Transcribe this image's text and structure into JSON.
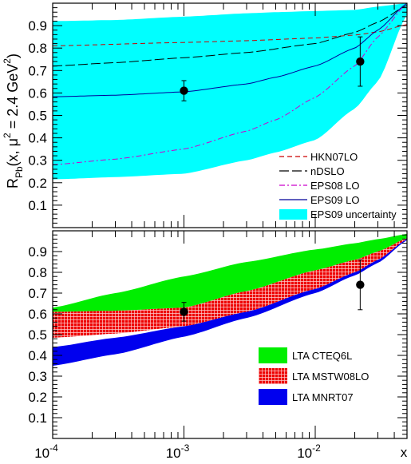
{
  "chart_data": [
    {
      "type": "line",
      "panel": "top",
      "ylabel_parts": [
        "R",
        "Pb",
        "(x, μ",
        "2",
        " = 2.4 GeV",
        "2",
        ")"
      ],
      "xscale": "log",
      "xlim": [
        0.0001,
        0.05
      ],
      "ylim": [
        0.0,
        1.0
      ],
      "yticks": [
        "0.1",
        "0.2",
        "0.3",
        "0.4",
        "0.5",
        "0.6",
        "0.7",
        "0.8",
        "0.9"
      ],
      "band": {
        "name": "EPS09 uncertainty",
        "color": "#00ffff",
        "x": [
          0.0001,
          0.0003,
          0.001,
          0.003,
          0.005,
          0.01,
          0.02,
          0.03,
          0.05
        ],
        "upper": [
          0.92,
          0.925,
          0.94,
          0.955,
          0.96,
          0.965,
          0.97,
          0.985,
          1.0
        ],
        "lower": [
          0.215,
          0.225,
          0.24,
          0.3,
          0.335,
          0.39,
          0.53,
          0.65,
          0.95
        ]
      },
      "series": [
        {
          "name": "HKN07LO",
          "color": "#cc0000",
          "dash": "6,4",
          "x": [
            0.0001,
            0.001,
            0.003,
            0.01,
            0.02,
            0.03,
            0.05
          ],
          "values": [
            0.81,
            0.825,
            0.833,
            0.845,
            0.858,
            0.872,
            0.905
          ]
        },
        {
          "name": "nDSLO",
          "color": "#000000",
          "dash": "12,4",
          "x": [
            0.0001,
            0.0003,
            0.001,
            0.003,
            0.01,
            0.02,
            0.03,
            0.05
          ],
          "values": [
            0.72,
            0.735,
            0.757,
            0.78,
            0.82,
            0.87,
            0.915,
            0.99
          ]
        },
        {
          "name": "EPS08 LO",
          "color": "#cc00cc",
          "dash": "7,3,2,3",
          "x": [
            0.0001,
            0.0003,
            0.001,
            0.003,
            0.005,
            0.01,
            0.02,
            0.03,
            0.05
          ],
          "values": [
            0.28,
            0.305,
            0.35,
            0.43,
            0.48,
            0.58,
            0.72,
            0.85,
            1.0
          ]
        },
        {
          "name": "EPS09 LO",
          "color": "#000099",
          "dash": "",
          "x": [
            0.0001,
            0.0003,
            0.001,
            0.003,
            0.005,
            0.01,
            0.02,
            0.03,
            0.05
          ],
          "values": [
            0.583,
            0.59,
            0.605,
            0.64,
            0.67,
            0.72,
            0.8,
            0.88,
            1.0
          ]
        }
      ],
      "points": [
        {
          "x": 0.001,
          "y": 0.61,
          "err": 0.045
        },
        {
          "x": 0.022,
          "y": 0.74,
          "err": 0.11
        }
      ],
      "legend": {
        "placement": "bottom-right",
        "entries": [
          {
            "label": "HKN07LO",
            "kind": "line",
            "color": "#cc0000",
            "dash": "6,4"
          },
          {
            "label": "nDSLO",
            "kind": "line",
            "color": "#000000",
            "dash": "12,4"
          },
          {
            "label": "EPS08 LO",
            "kind": "line",
            "color": "#cc00cc",
            "dash": "7,3,2,3"
          },
          {
            "label": "EPS09 LO",
            "kind": "line",
            "color": "#000099",
            "dash": ""
          },
          {
            "label": "EPS09 uncertainty",
            "kind": "box",
            "color": "#00ffff"
          }
        ]
      }
    },
    {
      "type": "area",
      "panel": "bottom",
      "xlabel": "x",
      "xscale": "log",
      "xlim": [
        0.0001,
        0.05
      ],
      "ylim": [
        0.0,
        1.0
      ],
      "yticks": [
        "0.1",
        "0.2",
        "0.3",
        "0.4",
        "0.5",
        "0.6",
        "0.7",
        "0.8",
        "0.9"
      ],
      "xticks": [
        {
          "value": 0.0001,
          "base": "10",
          "exp": "-4"
        },
        {
          "value": 0.001,
          "base": "10",
          "exp": "-3"
        },
        {
          "value": 0.01,
          "base": "10",
          "exp": "-2"
        }
      ],
      "bands": [
        {
          "name": "LTA MNRT07",
          "color": "#0000ee",
          "pattern": "solid",
          "x": [
            0.0001,
            0.0003,
            0.001,
            0.003,
            0.01,
            0.02,
            0.03,
            0.05
          ],
          "upper": [
            0.44,
            0.485,
            0.54,
            0.61,
            0.72,
            0.8,
            0.86,
            0.96
          ],
          "lower": [
            0.35,
            0.405,
            0.49,
            0.58,
            0.7,
            0.785,
            0.845,
            0.955
          ]
        },
        {
          "name": "LTA MSTW08LO",
          "color": "#ee0000",
          "pattern": "grid",
          "x": [
            0.0001,
            0.0003,
            0.001,
            0.003,
            0.01,
            0.02,
            0.03,
            0.05
          ],
          "upper": [
            0.61,
            0.615,
            0.63,
            0.71,
            0.81,
            0.86,
            0.9,
            0.965
          ],
          "lower": [
            0.485,
            0.505,
            0.54,
            0.61,
            0.72,
            0.8,
            0.86,
            0.96
          ]
        },
        {
          "name": "LTA CTEQ6L",
          "color": "#00ee00",
          "pattern": "solid",
          "x": [
            0.0001,
            0.0003,
            0.001,
            0.003,
            0.01,
            0.02,
            0.03,
            0.05
          ],
          "upper": [
            0.63,
            0.7,
            0.78,
            0.85,
            0.91,
            0.94,
            0.96,
            0.985
          ],
          "lower": [
            0.61,
            0.615,
            0.63,
            0.71,
            0.81,
            0.86,
            0.9,
            0.965
          ]
        }
      ],
      "points": [
        {
          "x": 0.001,
          "y": 0.61,
          "err": 0.045
        },
        {
          "x": 0.022,
          "y": 0.74,
          "err": 0.12
        }
      ],
      "legend": {
        "placement": "bottom-right",
        "entries": [
          {
            "label": "LTA CTEQ6L",
            "color": "#00ee00",
            "pattern": "solid"
          },
          {
            "label": "LTA MSTW08LO",
            "color": "#ee0000",
            "pattern": "grid"
          },
          {
            "label": "LTA MNRT07",
            "color": "#0000ee",
            "pattern": "solid"
          }
        ]
      }
    }
  ]
}
